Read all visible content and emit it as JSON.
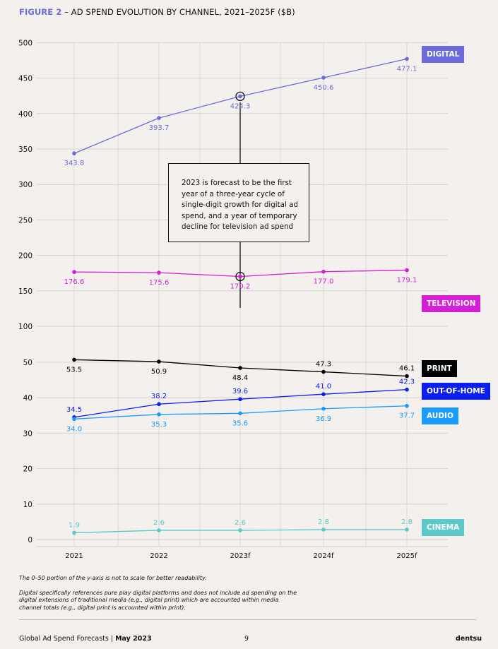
{
  "header": {
    "figure_label": "FIGURE 2",
    "title": " – AD SPEND EVOLUTION BY CHANNEL, 2021–2025F ($B)"
  },
  "chart_data": {
    "type": "line",
    "title": "AD SPEND EVOLUTION BY CHANNEL, 2021–2025F ($B)",
    "categories": [
      "2021",
      "2022",
      "2023f",
      "2024f",
      "2025f"
    ],
    "y_ticks": [
      0,
      10,
      20,
      30,
      40,
      50,
      100,
      150,
      200,
      250,
      300,
      350,
      400,
      450,
      500
    ],
    "y_axis_note": "broken axis: 0–50 segment not to scale",
    "grid": true,
    "legend_placement": "right, labels beside series ends",
    "series": [
      {
        "name": "DIGITAL",
        "color": "#6b6bdc",
        "values": [
          343.8,
          393.7,
          424.3,
          450.6,
          477.1
        ],
        "labels": [
          "343.8",
          "393.7",
          "424.3",
          "450.6",
          "477.1"
        ]
      },
      {
        "name": "TELEVISION",
        "color": "#d41fd4",
        "values": [
          176.6,
          175.6,
          170.2,
          177.0,
          179.1
        ],
        "labels": [
          "176.6",
          "175.6",
          "170.2",
          "177.0",
          "179.1"
        ]
      },
      {
        "name": "PRINT",
        "color": "#000000",
        "values": [
          53.5,
          50.9,
          48.4,
          47.3,
          46.1
        ],
        "labels": [
          "53.5",
          "50.9",
          "48.4",
          "47.3",
          "46.1"
        ]
      },
      {
        "name": "OUT-OF-HOME",
        "color": "#0a1ef0",
        "values": [
          34.5,
          38.2,
          39.6,
          41.0,
          42.3
        ],
        "labels": [
          "34.5",
          "38.2",
          "39.6",
          "41.0",
          "42.3"
        ]
      },
      {
        "name": "AUDIO",
        "color": "#1a9bff",
        "values": [
          34.0,
          35.3,
          35.6,
          36.9,
          37.7
        ],
        "labels": [
          "34.0",
          "35.3",
          "35.6",
          "36.9",
          "37.7"
        ]
      },
      {
        "name": "CINEMA",
        "color": "#5cc8c8",
        "values": [
          1.9,
          2.6,
          2.6,
          2.8,
          2.8
        ],
        "labels": [
          "1.9",
          "2.6",
          "2.6",
          "2.8",
          "2.8"
        ]
      }
    ],
    "annotation": "2023 is forecast to be the first year of a three-year cycle of single-digit growth for digital ad spend, and a year of temporary decline for television ad spend"
  },
  "notes": [
    "The 0–50 portion of the y-axis is not to scale for better readability.",
    "Digital specifically references pure play digital platforms and does not include ad spending on the digital extensions of traditional media (e.g., digital print) which are accounted within media channel totals (e.g., digital print is accounted within print)."
  ],
  "footer": {
    "publication": "Global Ad Spend Forecasts | ",
    "date": "May 2023",
    "page": "9",
    "brand": "dentsu"
  }
}
